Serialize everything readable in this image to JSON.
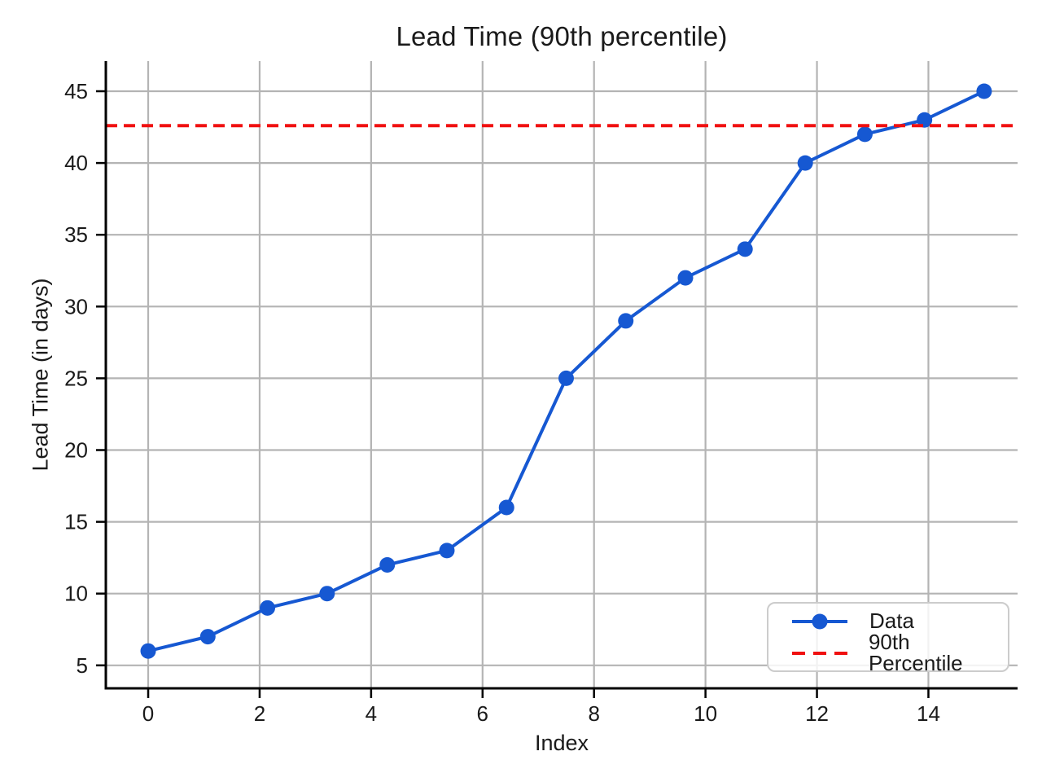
{
  "chart_data": {
    "type": "line",
    "title": "Lead Time (90th percentile)",
    "xlabel": "Index",
    "ylabel": "Lead Time (in days)",
    "x": [
      0,
      1.07,
      2.14,
      3.21,
      4.29,
      5.36,
      6.43,
      7.5,
      8.57,
      9.64,
      10.71,
      11.79,
      12.86,
      13.93,
      15
    ],
    "series": [
      {
        "name": "Data",
        "values": [
          6,
          7,
          9,
          10,
          12,
          13,
          16,
          25,
          29,
          32,
          34,
          40,
          42,
          43,
          45
        ],
        "color": "#1658d2",
        "marker": "circle"
      }
    ],
    "reference_lines": [
      {
        "name": "90th Percentile",
        "value": 42.6,
        "color": "#f01010",
        "style": "dashed"
      }
    ],
    "xticks": [
      0,
      2,
      4,
      6,
      8,
      10,
      12,
      14
    ],
    "yticks": [
      5,
      10,
      15,
      20,
      25,
      30,
      35,
      40,
      45
    ],
    "xlim": [
      -0.76,
      15.6
    ],
    "ylim": [
      3.4,
      47.1
    ],
    "grid": true,
    "grid_color": "#b4b4b4",
    "axis_color": "#000000",
    "legend_position": "lower right"
  }
}
